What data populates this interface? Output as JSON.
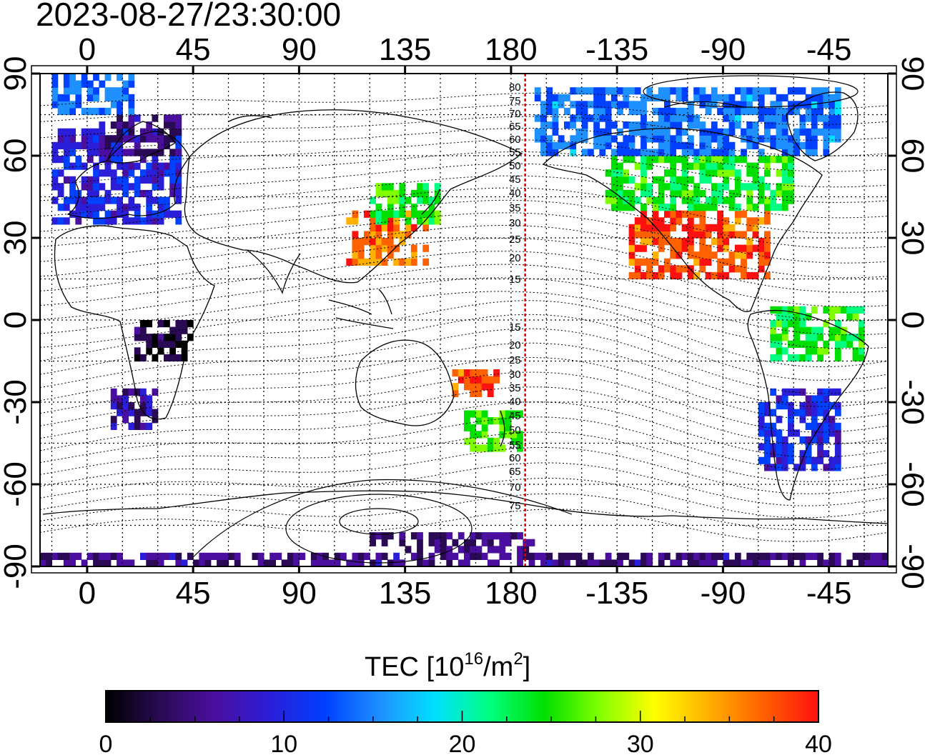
{
  "timestamp": "2023-08-27/23:30:00",
  "map": {
    "x_ticks": [
      "0",
      "45",
      "90",
      "135",
      "180",
      "-135",
      "-90",
      "-45"
    ],
    "y_ticks": [
      "90",
      "60",
      "30",
      "0",
      "-30",
      "-60",
      "-90"
    ],
    "x_tick_lon": [
      0,
      45,
      90,
      135,
      180,
      225,
      270,
      315
    ],
    "y_tick_lat": [
      90,
      60,
      30,
      0,
      -30,
      -60,
      -90
    ],
    "lon_range": [
      -20,
      340
    ],
    "lat_range": [
      -90,
      90
    ],
    "grid": true,
    "terminator_lon": 186,
    "terminator_color": "#e00000",
    "contour_labels_north": [
      "80",
      "75",
      "70",
      "65",
      "60",
      "55",
      "50",
      "45",
      "40",
      "35",
      "30",
      "25",
      "20",
      "15"
    ],
    "contour_labels_south": [
      "15",
      "20",
      "25",
      "30",
      "35",
      "40",
      "45",
      "50",
      "55",
      "60",
      "65",
      "70",
      "75"
    ]
  },
  "colorbar": {
    "title_main": "TEC  [10",
    "title_sup": "16",
    "title_mid": "/m",
    "title_sup2": "2",
    "title_end": "]",
    "tick_labels": [
      "0",
      "10",
      "20",
      "30",
      "40"
    ],
    "range": [
      0,
      40
    ],
    "colors": [
      "#000000",
      "#2a0a55",
      "#4b0fa0",
      "#2a1ed8",
      "#0040ff",
      "#1e90ff",
      "#00e0ff",
      "#00ff80",
      "#00e000",
      "#80ff00",
      "#ffff00",
      "#ffb000",
      "#ff6000",
      "#ff1010"
    ]
  },
  "chart_data": {
    "type": "heatmap",
    "title": "2023-08-27/23:30:00",
    "xlabel": "",
    "ylabel": "",
    "colorbar_label": "TEC [10^16/m^2]",
    "value_range": [
      0,
      40
    ],
    "regions": [
      {
        "lon": [
          -15,
          40
        ],
        "lat": [
          35,
          70
        ],
        "tec": 10
      },
      {
        "lon": [
          5,
          40
        ],
        "lat": [
          60,
          75
        ],
        "tec": 5
      },
      {
        "lon": [
          -15,
          20
        ],
        "lat": [
          75,
          88
        ],
        "tec": 14
      },
      {
        "lon": [
          10,
          30
        ],
        "lat": [
          -40,
          -25
        ],
        "tec": 6
      },
      {
        "lon": [
          20,
          45
        ],
        "lat": [
          -15,
          0
        ],
        "tec": 2
      },
      {
        "lon": [
          110,
          145
        ],
        "lat": [
          20,
          40
        ],
        "tec": 36
      },
      {
        "lon": [
          120,
          150
        ],
        "lat": [
          35,
          50
        ],
        "tec": 25
      },
      {
        "lon": [
          160,
          185
        ],
        "lat": [
          -48,
          -35
        ],
        "tec": 26
      },
      {
        "lon": [
          155,
          175
        ],
        "lat": [
          -28,
          -18
        ],
        "tec": 38
      },
      {
        "lon": [
          230,
          290
        ],
        "lat": [
          15,
          40
        ],
        "tec": 38
      },
      {
        "lon": [
          220,
          300
        ],
        "lat": [
          40,
          60
        ],
        "tec": 24
      },
      {
        "lon": [
          190,
          320
        ],
        "lat": [
          60,
          85
        ],
        "tec": 14
      },
      {
        "lon": [
          285,
          320
        ],
        "lat": [
          -55,
          -25
        ],
        "tec": 10
      },
      {
        "lon": [
          290,
          330
        ],
        "lat": [
          -15,
          5
        ],
        "tec": 24
      },
      {
        "lon": [
          120,
          190
        ],
        "lat": [
          -85,
          -78
        ],
        "tec": 5
      },
      {
        "lon": [
          -20,
          340
        ],
        "lat": [
          -90,
          -86
        ],
        "tec": 5
      }
    ]
  }
}
